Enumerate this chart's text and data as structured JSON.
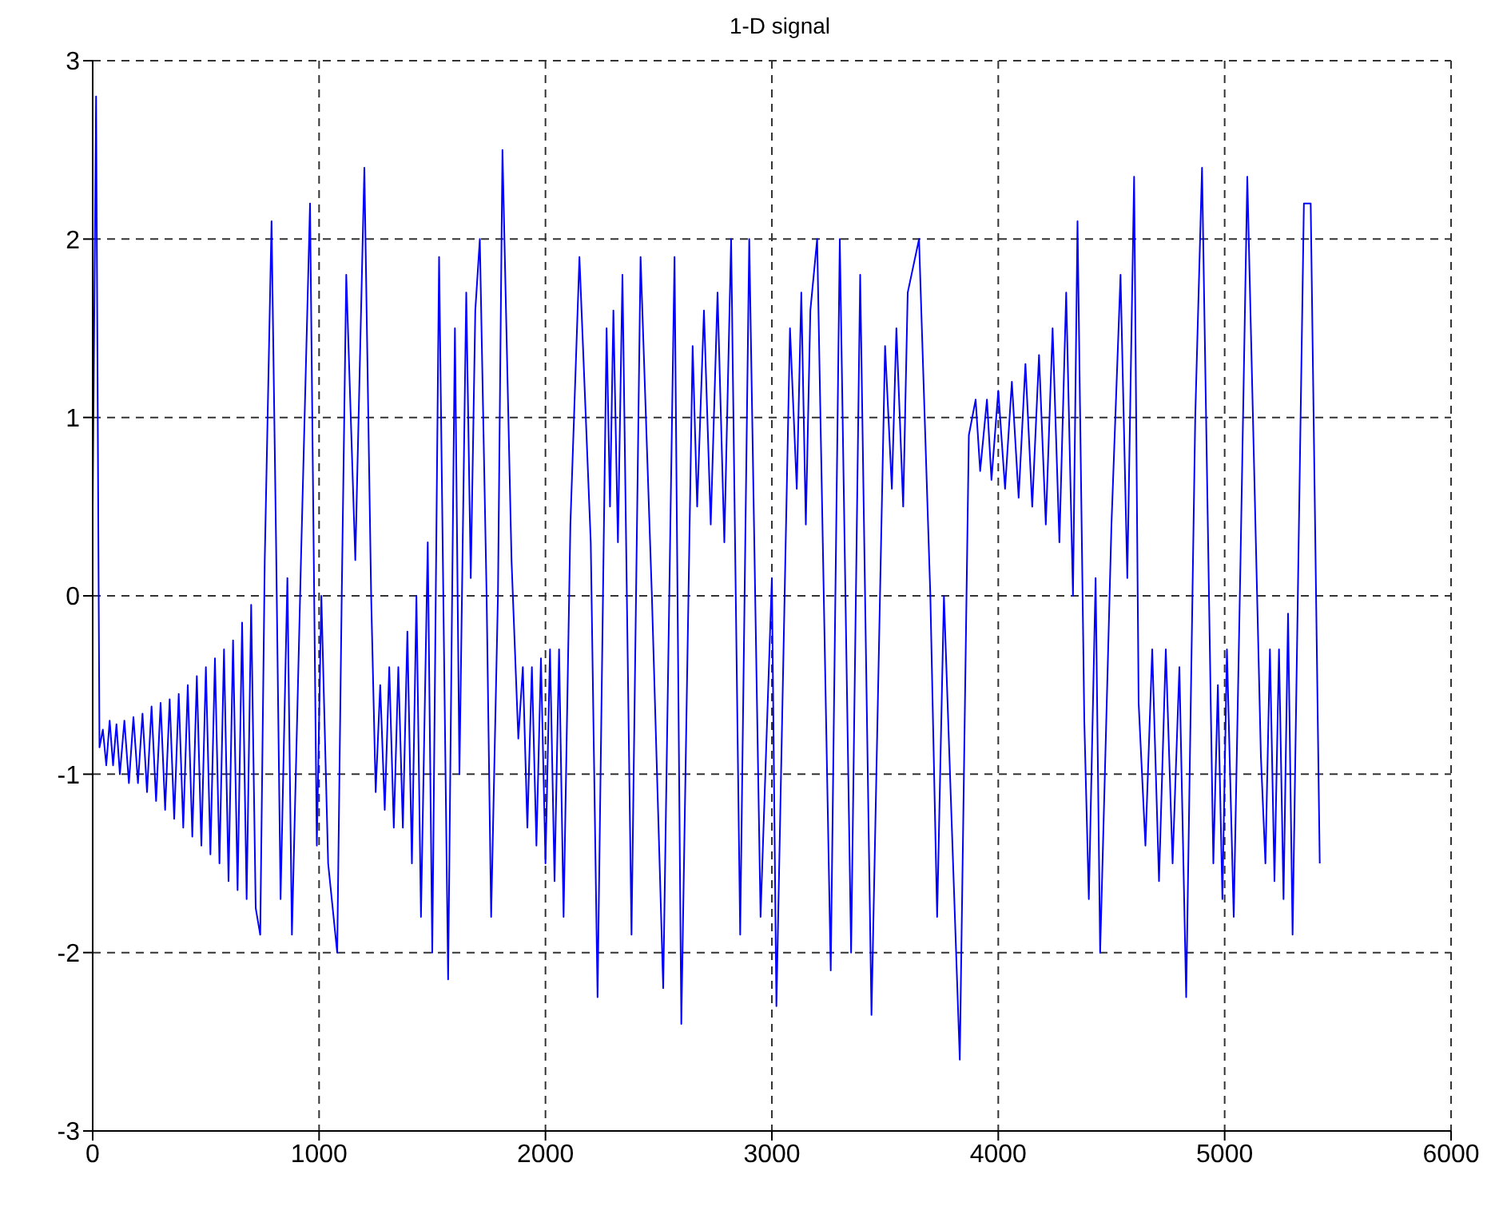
{
  "chart_data": {
    "type": "line",
    "title": "1-D signal",
    "x": [
      0,
      15,
      30,
      45,
      60,
      75,
      90,
      105,
      120,
      140,
      160,
      180,
      200,
      220,
      240,
      260,
      280,
      300,
      320,
      340,
      360,
      380,
      400,
      420,
      440,
      460,
      480,
      500,
      520,
      540,
      560,
      580,
      600,
      620,
      640,
      660,
      680,
      700,
      720,
      740,
      760,
      790,
      810,
      830,
      860,
      880,
      920,
      960,
      990,
      1010,
      1040,
      1080,
      1100,
      1120,
      1160,
      1200,
      1230,
      1250,
      1270,
      1290,
      1310,
      1330,
      1350,
      1370,
      1390,
      1410,
      1430,
      1450,
      1480,
      1500,
      1530,
      1570,
      1600,
      1620,
      1650,
      1670,
      1690,
      1710,
      1740,
      1760,
      1790,
      1810,
      1850,
      1880,
      1900,
      1920,
      1940,
      1960,
      1980,
      2000,
      2020,
      2040,
      2060,
      2080,
      2110,
      2150,
      2200,
      2230,
      2270,
      2285,
      2300,
      2320,
      2340,
      2380,
      2420,
      2470,
      2520,
      2570,
      2600,
      2650,
      2670,
      2700,
      2730,
      2760,
      2790,
      2820,
      2860,
      2900,
      2950,
      3000,
      3020,
      3080,
      3110,
      3130,
      3150,
      3170,
      3200,
      3260,
      3300,
      3350,
      3390,
      3440,
      3500,
      3530,
      3550,
      3580,
      3600,
      3650,
      3700,
      3730,
      3760,
      3830,
      3870,
      3900,
      3920,
      3950,
      3970,
      4000,
      4030,
      4060,
      4090,
      4120,
      4150,
      4180,
      4210,
      4240,
      4270,
      4300,
      4330,
      4350,
      4380,
      4400,
      4430,
      4450,
      4500,
      4540,
      4570,
      4600,
      4620,
      4650,
      4680,
      4710,
      4740,
      4770,
      4800,
      4830,
      4870,
      4900,
      4950,
      4970,
      4990,
      5010,
      5040,
      5070,
      5100,
      5160,
      5180,
      5200,
      5220,
      5240,
      5260,
      5280,
      5300,
      5350,
      5380,
      5420
    ],
    "values": [
      0.5,
      2.8,
      -0.85,
      -0.75,
      -0.95,
      -0.7,
      -0.95,
      -0.72,
      -1.0,
      -0.7,
      -1.05,
      -0.68,
      -1.05,
      -0.66,
      -1.1,
      -0.62,
      -1.15,
      -0.6,
      -1.2,
      -0.58,
      -1.25,
      -0.55,
      -1.3,
      -0.5,
      -1.35,
      -0.45,
      -1.4,
      -0.4,
      -1.45,
      -0.35,
      -1.5,
      -0.3,
      -1.6,
      -0.25,
      -1.65,
      -0.15,
      -1.7,
      -0.05,
      -1.75,
      -1.9,
      0.2,
      2.1,
      0.3,
      -1.7,
      0.1,
      -1.9,
      0.2,
      2.2,
      -1.4,
      0.0,
      -1.5,
      -2.0,
      0.0,
      1.8,
      0.2,
      2.4,
      0.0,
      -1.1,
      -0.5,
      -1.2,
      -0.4,
      -1.3,
      -0.4,
      -1.3,
      -0.2,
      -1.5,
      0.0,
      -1.8,
      0.3,
      -2.0,
      1.9,
      -2.15,
      1.5,
      -1.0,
      1.7,
      0.1,
      1.6,
      2.0,
      0.0,
      -1.8,
      0.0,
      2.5,
      0.2,
      -0.8,
      -0.4,
      -1.3,
      -0.4,
      -1.4,
      -0.35,
      -1.5,
      -0.3,
      -1.6,
      -0.3,
      -1.8,
      0.4,
      1.9,
      0.3,
      -2.25,
      1.5,
      0.5,
      1.6,
      0.3,
      1.8,
      -1.9,
      1.9,
      0.0,
      -2.2,
      1.9,
      -2.4,
      1.4,
      0.5,
      1.6,
      0.4,
      1.7,
      0.3,
      2.0,
      -1.9,
      2.0,
      -1.8,
      0.1,
      -2.3,
      1.5,
      0.6,
      1.7,
      0.4,
      1.6,
      2.0,
      -2.1,
      2.0,
      -2.0,
      1.8,
      -2.35,
      1.4,
      0.6,
      1.5,
      0.5,
      1.7,
      2.0,
      0.0,
      -1.8,
      0.0,
      -2.6,
      0.9,
      1.1,
      0.7,
      1.1,
      0.65,
      1.15,
      0.6,
      1.2,
      0.55,
      1.3,
      0.5,
      1.35,
      0.4,
      1.5,
      0.3,
      1.7,
      0.0,
      2.1,
      -0.7,
      -1.7,
      0.1,
      -2.0,
      0.4,
      1.8,
      0.1,
      2.35,
      -0.6,
      -1.4,
      -0.3,
      -1.6,
      -0.3,
      -1.5,
      -0.4,
      -2.25,
      1.0,
      2.4,
      -1.5,
      -0.5,
      -1.7,
      -0.3,
      -1.8,
      0.2,
      2.35,
      -0.9,
      -1.5,
      -0.3,
      -1.6,
      -0.3,
      -1.7,
      -0.1,
      -1.9,
      2.2,
      2.2,
      -1.5
    ],
    "color": "#0000ff",
    "xlim": [
      0,
      6000
    ],
    "xticks": [
      0,
      1000,
      2000,
      3000,
      4000,
      5000,
      6000
    ],
    "ylim": [
      -3,
      3
    ],
    "yticks": [
      -3,
      -2,
      -1,
      0,
      1,
      2,
      3
    ],
    "grid": true,
    "line_style": "solid",
    "marker": "none"
  }
}
